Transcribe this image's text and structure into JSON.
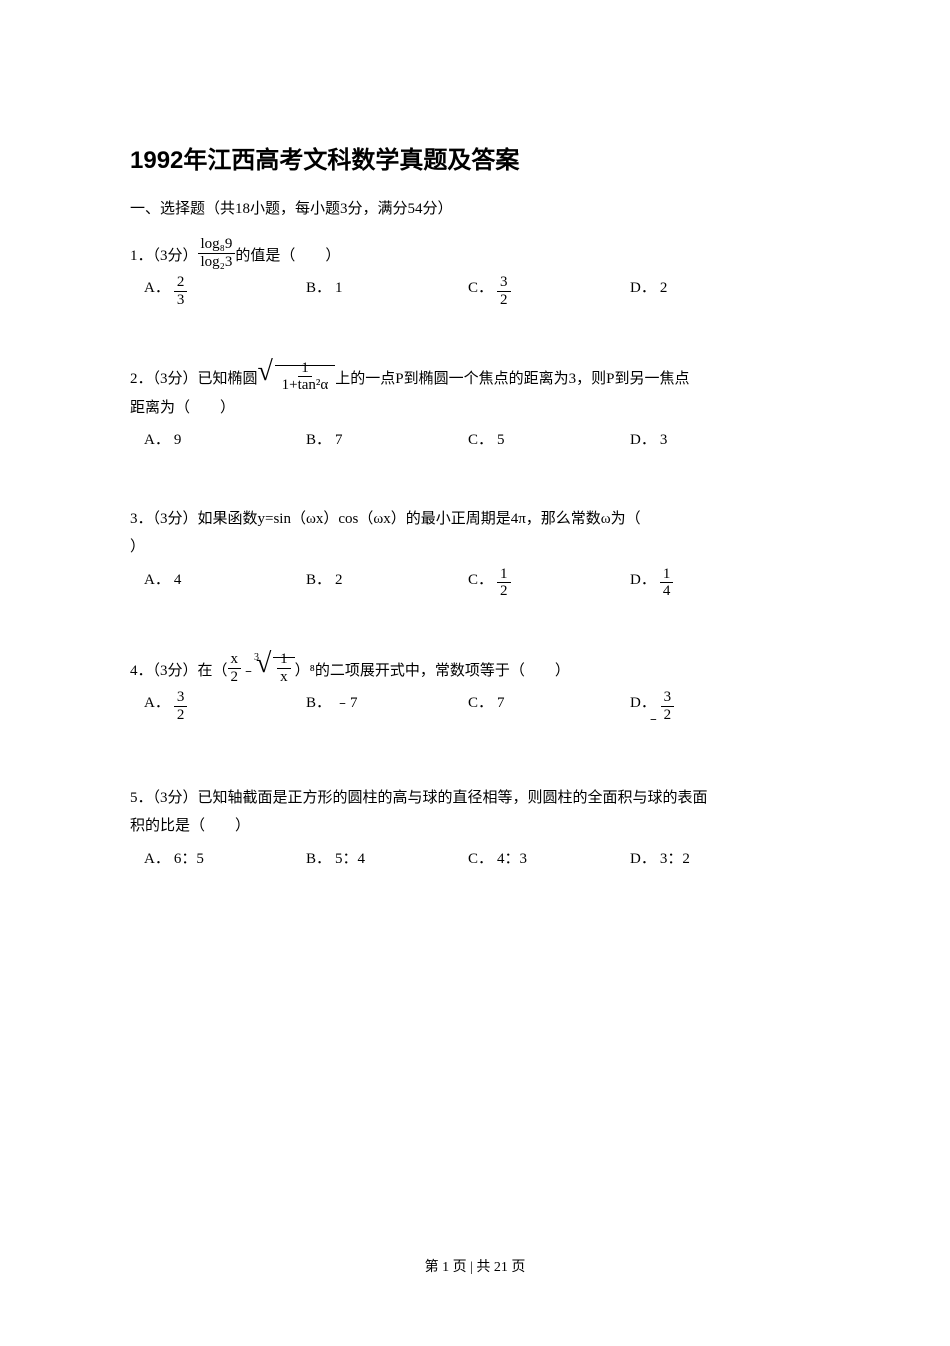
{
  "title": "1992年江西高考文科数学真题及答案",
  "section": "一、选择题（共18小题，每小题3分，满分54分）",
  "q1": {
    "num": "1．（3分）",
    "frac_top": "log₈9",
    "frac_bot": "log₂3",
    "tail": "的值是（　　）",
    "A_label": "A．",
    "A_num": "2",
    "A_den": "3",
    "B_label": "B．",
    "B_val": "1",
    "C_label": "C．",
    "C_num": "3",
    "C_den": "2",
    "D_label": "D．",
    "D_val": "2"
  },
  "q2": {
    "num": "2．（3分）已知椭圆",
    "sqrt_num": "1",
    "sqrt_den": "1+tan²α",
    "mid": "上的一点P到椭圆一个焦点的距离为3，则P到另一焦点",
    "line2": "距离为（　　）",
    "A_label": "A．",
    "A_val": "9",
    "B_label": "B．",
    "B_val": "7",
    "C_label": "C．",
    "C_val": "5",
    "D_label": "D．",
    "D_val": "3"
  },
  "q3": {
    "line1": "3．（3分）如果函数y=sin（ωx）cos（ωx）的最小正周期是4π，那么常数ω为（",
    "line2": "）",
    "A_label": "A．",
    "A_val": "4",
    "B_label": "B．",
    "B_val": "2",
    "C_label": "C．",
    "C_num": "1",
    "C_den": "2",
    "D_label": "D．",
    "D_num": "1",
    "D_den": "4"
  },
  "q4": {
    "num": "4．（3分）在（",
    "f1_num": "x",
    "f1_den": "2",
    "minus": "﹣",
    "root_idx": "3",
    "f2_num": "1",
    "f2_den": "x",
    "tail": "）⁸的二项展开式中，常数项等于（　　）",
    "A_label": "A．",
    "A_num": "3",
    "A_den": "2",
    "B_label": "B．",
    "B_val": "﹣7",
    "C_label": "C．",
    "C_val": "7",
    "D_label": "D．",
    "D_num": "3",
    "D_den": "2",
    "D_neg": "﹣"
  },
  "q5": {
    "line1": "5．（3分）已知轴截面是正方形的圆柱的高与球的直径相等，则圆柱的全面积与球的表面",
    "line2": "积的比是（　　）",
    "A_label": "A．",
    "A_val": "6：5",
    "B_label": "B．",
    "B_val": "5：4",
    "C_label": "C．",
    "C_val": "4：3",
    "D_label": "D．",
    "D_val": "3：2"
  },
  "footer": "第 1 页 | 共 21 页"
}
